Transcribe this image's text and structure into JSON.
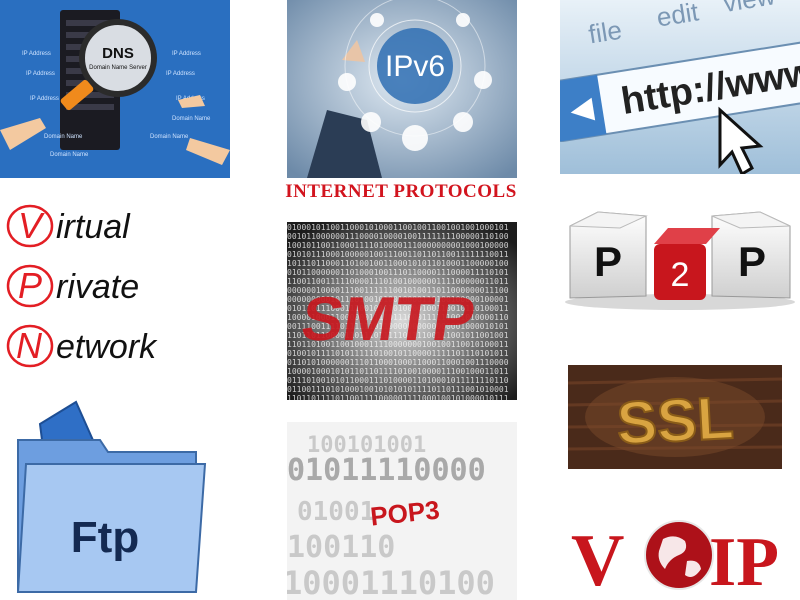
{
  "title": "INTERNET PROTOCOLS",
  "accent_color": "#d2141e",
  "tiles": {
    "dns": {
      "label": "DNS",
      "sublabel": "Domain Name Server",
      "ip_label": "IP Address",
      "domain_label": "Domain Name"
    },
    "ipv6": {
      "label": "IPv6"
    },
    "http": {
      "menu_file": "file",
      "menu_edit": "edit",
      "menu_view": "view",
      "url": "http://www."
    },
    "vpn": {
      "line1": "irtual",
      "line2": "rivate",
      "line3": "etwork",
      "l1": "V",
      "l2": "P",
      "l3": "N"
    },
    "smtp": {
      "label": "SMTP"
    },
    "p2p": {
      "left": "P",
      "mid": "2",
      "right": "P"
    },
    "ssl": {
      "label": "SSL"
    },
    "ftp": {
      "label": "Ftp"
    },
    "pop3": {
      "label": "POP3"
    },
    "voip": {
      "v": "V",
      "ip": "IP"
    }
  }
}
